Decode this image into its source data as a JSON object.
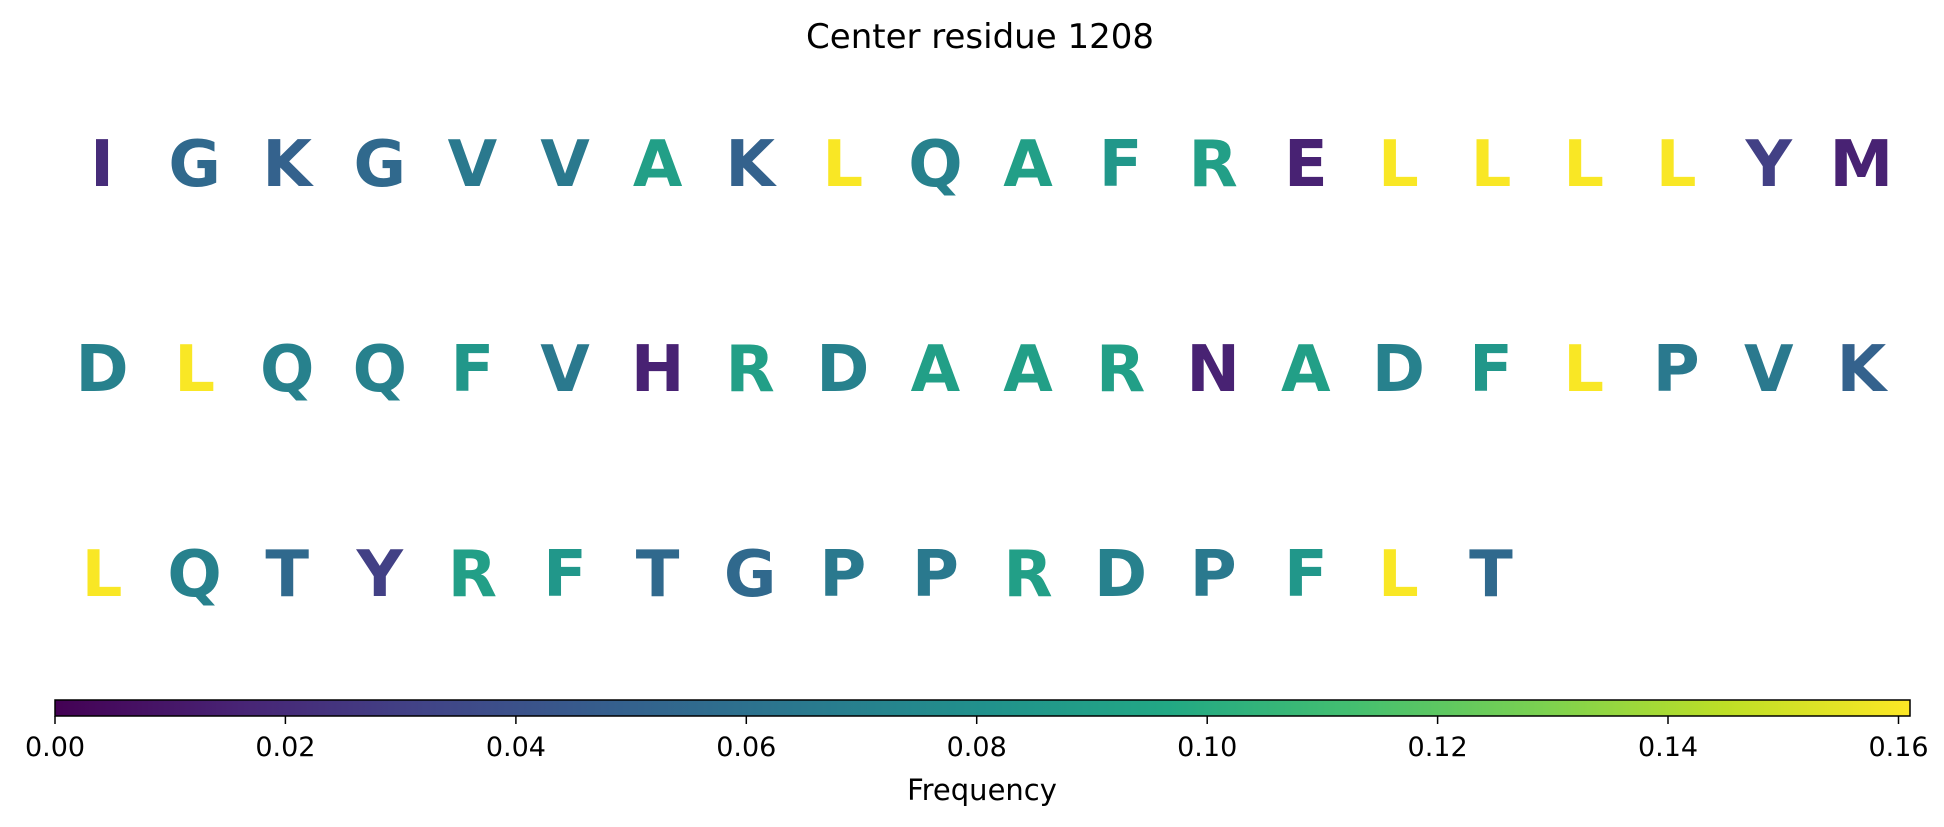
{
  "chart_data": {
    "type": "heatmap",
    "title": "Center residue 1208",
    "rows": [
      [
        {
          "residue": "I",
          "frequency": 0.02
        },
        {
          "residue": "G",
          "frequency": 0.055
        },
        {
          "residue": "K",
          "frequency": 0.05
        },
        {
          "residue": "G",
          "frequency": 0.055
        },
        {
          "residue": "V",
          "frequency": 0.065
        },
        {
          "residue": "V",
          "frequency": 0.065
        },
        {
          "residue": "A",
          "frequency": 0.09
        },
        {
          "residue": "K",
          "frequency": 0.05
        },
        {
          "residue": "L",
          "frequency": 0.16
        },
        {
          "residue": "Q",
          "frequency": 0.07
        },
        {
          "residue": "A",
          "frequency": 0.09
        },
        {
          "residue": "F",
          "frequency": 0.085
        },
        {
          "residue": "R",
          "frequency": 0.09
        },
        {
          "residue": "E",
          "frequency": 0.015
        },
        {
          "residue": "L",
          "frequency": 0.16
        },
        {
          "residue": "L",
          "frequency": 0.16
        },
        {
          "residue": "L",
          "frequency": 0.16
        },
        {
          "residue": "L",
          "frequency": 0.16
        },
        {
          "residue": "Y",
          "frequency": 0.03
        },
        {
          "residue": "M",
          "frequency": 0.015
        }
      ],
      [
        {
          "residue": "D",
          "frequency": 0.07
        },
        {
          "residue": "L",
          "frequency": 0.16
        },
        {
          "residue": "Q",
          "frequency": 0.07
        },
        {
          "residue": "Q",
          "frequency": 0.07
        },
        {
          "residue": "F",
          "frequency": 0.085
        },
        {
          "residue": "V",
          "frequency": 0.065
        },
        {
          "residue": "H",
          "frequency": 0.015
        },
        {
          "residue": "R",
          "frequency": 0.09
        },
        {
          "residue": "D",
          "frequency": 0.07
        },
        {
          "residue": "A",
          "frequency": 0.09
        },
        {
          "residue": "A",
          "frequency": 0.09
        },
        {
          "residue": "R",
          "frequency": 0.09
        },
        {
          "residue": "N",
          "frequency": 0.015
        },
        {
          "residue": "A",
          "frequency": 0.09
        },
        {
          "residue": "D",
          "frequency": 0.07
        },
        {
          "residue": "F",
          "frequency": 0.085
        },
        {
          "residue": "L",
          "frequency": 0.16
        },
        {
          "residue": "P",
          "frequency": 0.065
        },
        {
          "residue": "V",
          "frequency": 0.065
        },
        {
          "residue": "K",
          "frequency": 0.05
        }
      ],
      [
        {
          "residue": "L",
          "frequency": 0.16
        },
        {
          "residue": "Q",
          "frequency": 0.07
        },
        {
          "residue": "T",
          "frequency": 0.055
        },
        {
          "residue": "Y",
          "frequency": 0.03
        },
        {
          "residue": "R",
          "frequency": 0.09
        },
        {
          "residue": "F",
          "frequency": 0.085
        },
        {
          "residue": "T",
          "frequency": 0.055
        },
        {
          "residue": "G",
          "frequency": 0.055
        },
        {
          "residue": "P",
          "frequency": 0.065
        },
        {
          "residue": "P",
          "frequency": 0.065
        },
        {
          "residue": "R",
          "frequency": 0.09
        },
        {
          "residue": "D",
          "frequency": 0.07
        },
        {
          "residue": "P",
          "frequency": 0.065
        },
        {
          "residue": "F",
          "frequency": 0.085
        },
        {
          "residue": "L",
          "frequency": 0.16
        },
        {
          "residue": "T",
          "frequency": 0.055
        }
      ]
    ],
    "colorbar": {
      "label": "Frequency",
      "range": [
        0,
        0.161
      ],
      "ticks": [
        0.0,
        0.02,
        0.04,
        0.06,
        0.08,
        0.1,
        0.12,
        0.14,
        0.16
      ],
      "tick_labels": [
        "0.00",
        "0.02",
        "0.04",
        "0.06",
        "0.08",
        "0.10",
        "0.12",
        "0.14",
        "0.16"
      ],
      "colormap": "viridis",
      "orientation": "horizontal",
      "placement": "bottom"
    }
  }
}
